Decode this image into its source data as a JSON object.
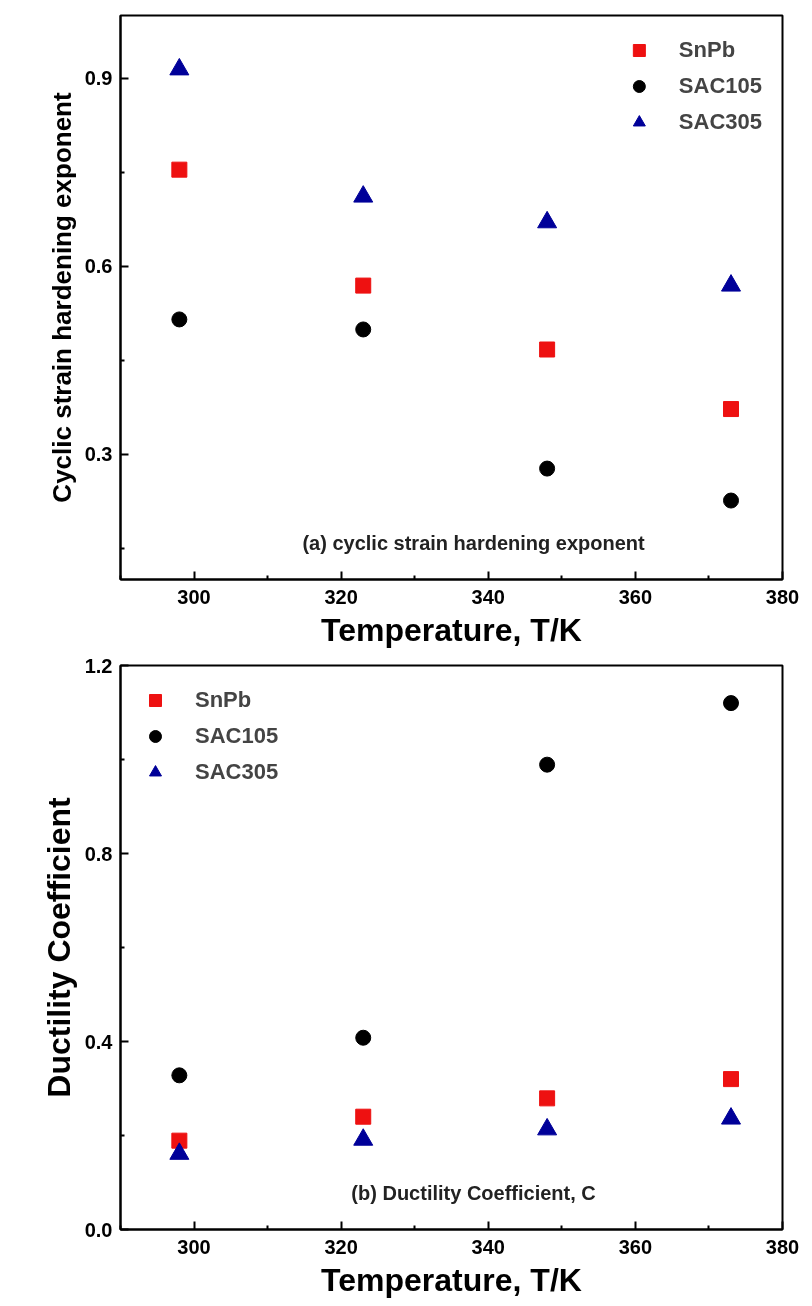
{
  "chart_data": [
    {
      "type": "scatter",
      "xlabel": "Temperature, T/K",
      "ylabel": "Cyclic strain hardening exponent",
      "annotations": [
        "(a) cyclic strain hardening exponent"
      ],
      "x": [
        298,
        323,
        348,
        373
      ],
      "xlim": [
        290,
        380
      ],
      "xticks": [
        300,
        320,
        340,
        360,
        380
      ],
      "ylim": [
        0.1,
        1.0
      ],
      "yticks": [
        0.3,
        0.6,
        0.9
      ],
      "grid": false,
      "legend": "top right",
      "series": [
        {
          "name": "SnPb",
          "color": "#ee1111",
          "marker": "square",
          "values": [
            0.754,
            0.569,
            0.467,
            0.372
          ]
        },
        {
          "name": "SAC105",
          "color": "#000000",
          "marker": "circle",
          "values": [
            0.515,
            0.499,
            0.277,
            0.226
          ]
        },
        {
          "name": "SAC305",
          "color": "#000099",
          "marker": "triangle",
          "values": [
            0.914,
            0.711,
            0.67,
            0.569
          ]
        }
      ]
    },
    {
      "type": "scatter",
      "xlabel": "Temperature, T/K",
      "ylabel": "Ductility Coefficient",
      "annotations": [
        "(b) Ductility Coefficient, C"
      ],
      "x": [
        298,
        323,
        348,
        373
      ],
      "xlim": [
        290,
        380
      ],
      "xticks": [
        300,
        320,
        340,
        360,
        380
      ],
      "ylim": [
        0,
        1.2
      ],
      "yticks": [
        {
          "value": 0,
          "label": "0.0"
        },
        0.4,
        0.8,
        1.2
      ],
      "grid": false,
      "legend": "top left",
      "series": [
        {
          "name": "SnPb",
          "color": "#ee1111",
          "marker": "square",
          "values": [
            0.189,
            0.24,
            0.279,
            0.32
          ]
        },
        {
          "name": "SAC105",
          "color": "#000000",
          "marker": "circle",
          "values": [
            0.328,
            0.408,
            0.989,
            1.12
          ]
        },
        {
          "name": "SAC305",
          "color": "#000099",
          "marker": "triangle",
          "values": [
            0.161,
            0.191,
            0.213,
            0.236
          ]
        }
      ]
    }
  ]
}
